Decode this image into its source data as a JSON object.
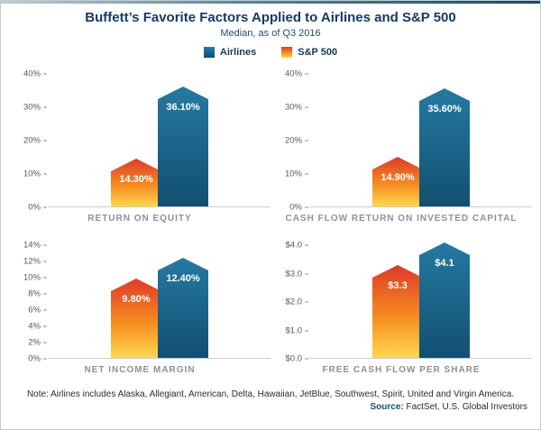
{
  "chart_data": {
    "type": "bar",
    "title": "Buffett’s Favorite Factors Applied to Airlines and S&P 500",
    "subtitle": "Median, as of Q3 2016",
    "legend_position": "top",
    "grid": false,
    "series_names": [
      "Airlines",
      "S&P 500"
    ],
    "series_colors": {
      "airlines": "#13618a",
      "sp500": "#f68b1f"
    },
    "panels": [
      {
        "title": "RETURN ON EQUITY",
        "ymax": 40,
        "ylim": [
          0,
          40
        ],
        "yticks": [
          "40%",
          "30%",
          "20%",
          "10%",
          "0%"
        ],
        "sp500": 14.3,
        "airlines": 36.1,
        "sp500_label": "14.30%",
        "airlines_label": "36.10%"
      },
      {
        "title": "CASH FLOW RETURN ON INVESTED CAPITAL",
        "ymax": 40,
        "ylim": [
          0,
          40
        ],
        "yticks": [
          "40%",
          "30%",
          "20%",
          "10%",
          "0%"
        ],
        "sp500": 14.9,
        "airlines": 35.6,
        "sp500_label": "14.90%",
        "airlines_label": "35.60%"
      },
      {
        "title": "NET INCOME MARGIN",
        "ymax": 14,
        "ylim": [
          0,
          14
        ],
        "yticks": [
          "14%",
          "12%",
          "10%",
          "8%",
          "6%",
          "4%",
          "2%",
          "0%"
        ],
        "sp500": 9.8,
        "airlines": 12.4,
        "sp500_label": "9.80%",
        "airlines_label": "12.40%"
      },
      {
        "title": "FREE CASH FLOW PER SHARE",
        "ymax": 4.0,
        "ylim": [
          0,
          4.0
        ],
        "yticks": [
          "$4.0",
          "$3.0",
          "$2.0",
          "$1.0",
          "$0.0"
        ],
        "sp500": 3.3,
        "airlines": 4.1,
        "sp500_label": "$3.3",
        "airlines_label": "$4.1"
      }
    ]
  },
  "footer": {
    "note": "Note: Airlines includes Alaska, Allegiant, American, Delta, Hawaiian, JetBlue, Southwest, Spirit, United and Virgin America.",
    "source_label": "Source:",
    "source_text": " FactSet, U.S. Global Investors"
  }
}
